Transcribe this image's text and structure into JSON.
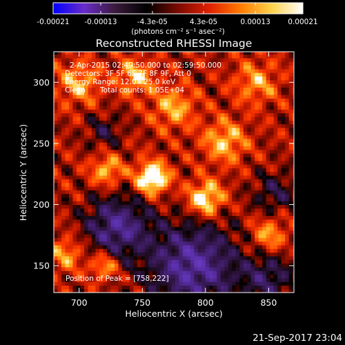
{
  "chart_data": {
    "type": "heatmap",
    "title": "Reconstructed RHESSI Image",
    "xlabel": "Heliocentric X (arcsec)",
    "ylabel": "Heliocentric Y (arcsec)",
    "xlim": [
      680,
      870
    ],
    "ylim": [
      128,
      325
    ],
    "x_ticks": [
      700,
      750,
      800,
      850
    ],
    "y_ticks": [
      150,
      200,
      250,
      300
    ],
    "colorbar": {
      "range": [
        -0.00021,
        0.00021
      ],
      "tick_values": [
        -0.00021,
        -0.00013,
        -4.3e-05,
        4.3e-05,
        0.00013,
        0.00021
      ],
      "tick_labels": [
        "-0.00021",
        "-0.00013",
        "-4.3e-05",
        "4.3e-05",
        "0.00013",
        "0.00021"
      ],
      "unit_label": "(photons cm⁻² s⁻¹ asec⁻²)",
      "colors": [
        "#0000ff",
        "#6a2cc8",
        "#3a1a3a",
        "#000000",
        "#7a0a00",
        "#e02000",
        "#ff7a00",
        "#ffd24a",
        "#ffffff"
      ]
    },
    "annotations": {
      "time_range": "2-Apr-2015 02:49:50.000 to 02:59:50.000",
      "detectors": "Detectors: 3F 5F 6F 7F 8F 9F, Att 0",
      "energy_range": "Energy Range: 12.0 - 25.0 keV",
      "algorithm": "Clean",
      "total_counts": "Total counts: 1.05E+04",
      "peak_position": "Position of Peak = [758,222]"
    },
    "peak": {
      "x": 758,
      "y": 222
    },
    "bright_sources": [
      {
        "x": 758,
        "y": 222,
        "amplitude": 1.0,
        "width": 9
      },
      {
        "x": 800,
        "y": 205,
        "amplitude": 0.78,
        "width": 10
      },
      {
        "x": 722,
        "y": 228,
        "amplitude": 0.55,
        "width": 9
      },
      {
        "x": 815,
        "y": 252,
        "amplitude": 0.55,
        "width": 12
      },
      {
        "x": 700,
        "y": 300,
        "amplitude": 0.5,
        "width": 12
      },
      {
        "x": 745,
        "y": 305,
        "amplitude": 0.55,
        "width": 10
      },
      {
        "x": 775,
        "y": 280,
        "amplitude": 0.5,
        "width": 12
      },
      {
        "x": 720,
        "y": 150,
        "amplitude": 0.55,
        "width": 8
      },
      {
        "x": 850,
        "y": 175,
        "amplitude": 0.5,
        "width": 10
      },
      {
        "x": 690,
        "y": 160,
        "amplitude": 0.45,
        "width": 10
      },
      {
        "x": 840,
        "y": 300,
        "amplitude": 0.45,
        "width": 12
      }
    ],
    "negative_regions": [
      {
        "x": 790,
        "y": 150,
        "amplitude": -0.85,
        "width": 25
      },
      {
        "x": 730,
        "y": 182,
        "amplitude": -0.75,
        "width": 18
      },
      {
        "x": 850,
        "y": 140,
        "amplitude": -0.5,
        "width": 15
      },
      {
        "x": 855,
        "y": 210,
        "amplitude": -0.4,
        "width": 12
      },
      {
        "x": 720,
        "y": 260,
        "amplitude": -0.35,
        "width": 10
      }
    ]
  },
  "footer": {
    "timestamp": "21-Sep-2017 23:04"
  }
}
